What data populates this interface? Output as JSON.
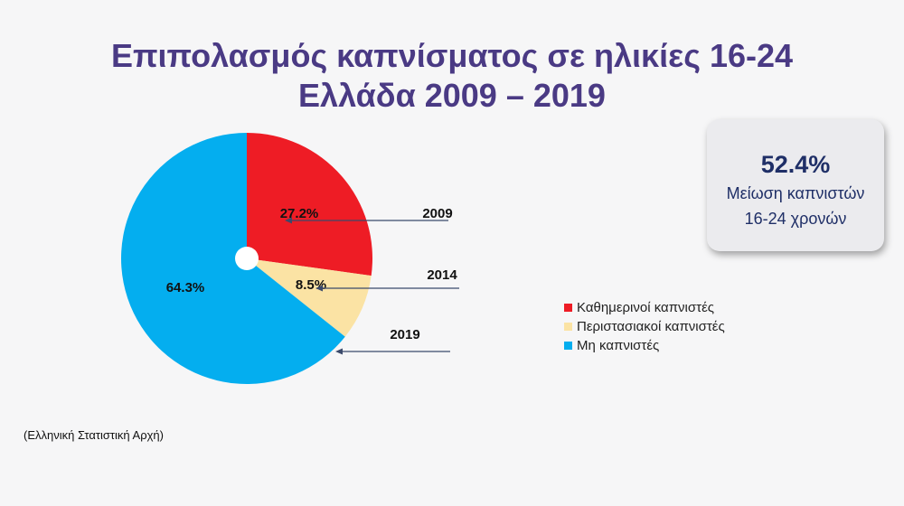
{
  "chart_data": {
    "type": "pie",
    "title": [
      "Επιπολασμός καπνίσματος σε ηλικίες 16-24",
      "Ελλάδα 2009 – 2019"
    ],
    "slices": [
      {
        "name": "Καθημερινοί καπνιστές",
        "value": 27.2,
        "label": "27.2%",
        "color": "#ee1c25"
      },
      {
        "name": "Περιστασιακοί καπνιστές",
        "value": 8.5,
        "label": "8.5%",
        "color": "#fbe3a4"
      },
      {
        "name": "Μη καπνιστές",
        "value": 64.3,
        "label": "64.3%",
        "color": "#04aeef"
      }
    ],
    "annotations": [
      "2009",
      "2014",
      "2019"
    ],
    "legend_position": "right"
  },
  "stat_card": {
    "value": "52.4%",
    "line1": "Μείωση καπνιστών",
    "line2": "16-24 χρονών"
  },
  "source": "(Ελληνική Στατιστική Αρχή)"
}
